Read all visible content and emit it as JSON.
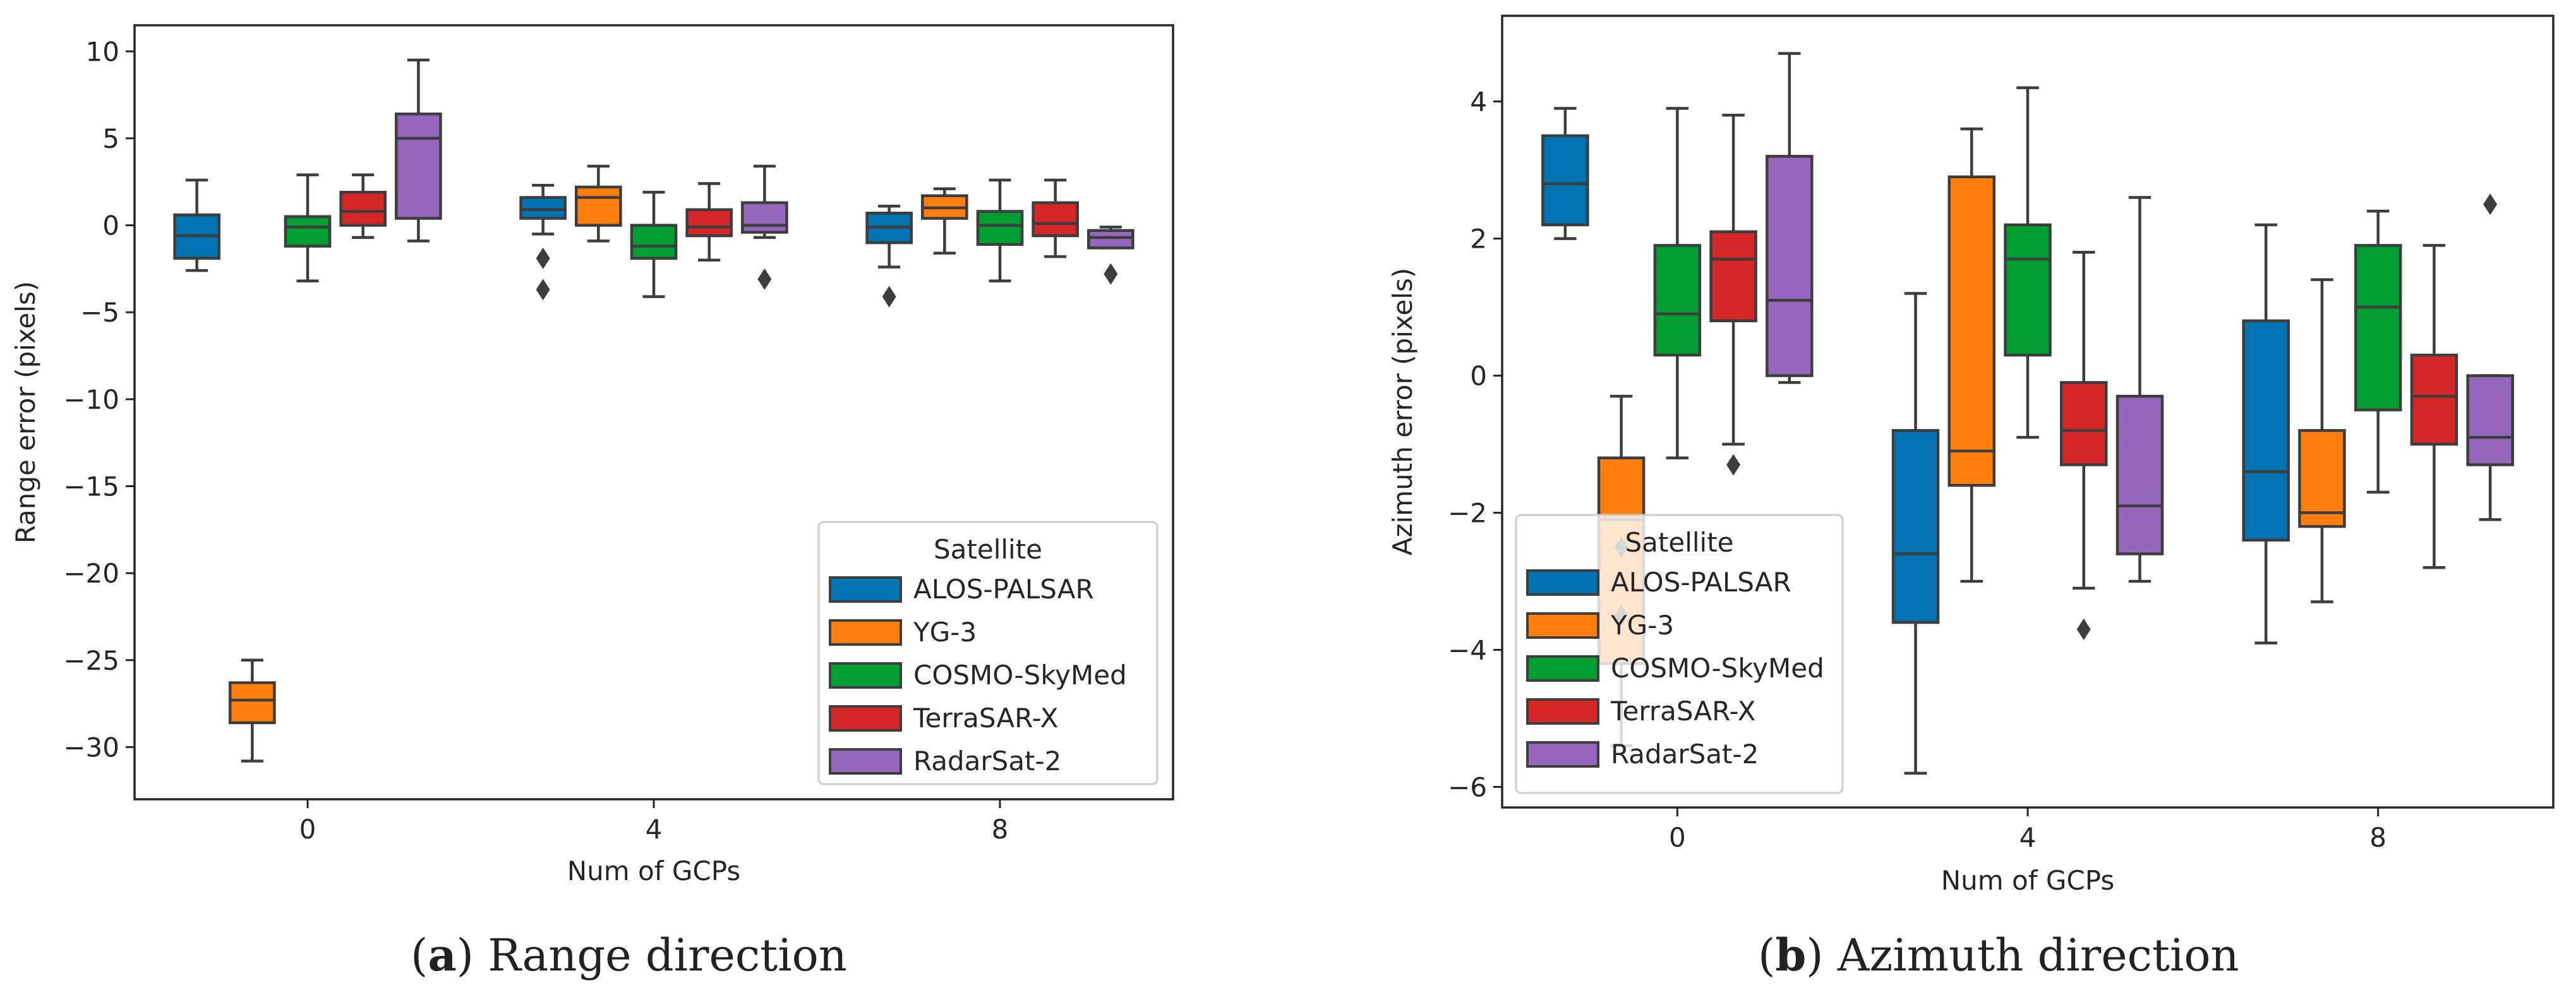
{
  "figure": {
    "colors": {
      "ALOS-PALSAR": "#0173b2",
      "YG-3": "#ff7f0e",
      "COSMO-SkyMed": "#029e31",
      "TerraSAR-X": "#d62728",
      "RadarSat-2": "#9467bd"
    },
    "captions": [
      {
        "letter": "a",
        "open": "(",
        "close": ")",
        "text": " Range direction"
      },
      {
        "letter": "b",
        "open": "(",
        "close": ")",
        "text": " Azimuth direction"
      }
    ]
  },
  "chart_data": [
    {
      "type": "boxplot",
      "id": "range",
      "xlabel": "Num of GCPs",
      "ylabel": "Range error (pixels)",
      "categories": [
        "0",
        "4",
        "8"
      ],
      "ylim": [
        -33,
        11.5
      ],
      "yticks": [
        10,
        5,
        0,
        -5,
        -10,
        -15,
        -20,
        -25,
        -30
      ],
      "ytick_labels": [
        "10",
        "5",
        "0",
        "−5",
        "−10",
        "−15",
        "−20",
        "−25",
        "−30"
      ],
      "legend": {
        "title": "Satellite",
        "position": "lower-right"
      },
      "series": [
        {
          "name": "ALOS-PALSAR",
          "boxes": [
            {
              "whislo": -2.6,
              "q1": -1.9,
              "med": -0.6,
              "q3": 0.6,
              "whishi": 2.6,
              "fliers": []
            },
            {
              "whislo": -0.5,
              "q1": 0.4,
              "med": 0.9,
              "q3": 1.6,
              "whishi": 2.3,
              "fliers": [
                -1.9,
                -3.7
              ]
            },
            {
              "whislo": -2.4,
              "q1": -1.0,
              "med": -0.1,
              "q3": 0.7,
              "whishi": 1.1,
              "fliers": [
                -4.1
              ]
            }
          ]
        },
        {
          "name": "YG-3",
          "boxes": [
            {
              "whislo": -30.8,
              "q1": -28.6,
              "med": -27.3,
              "q3": -26.3,
              "whishi": -25.0,
              "fliers": []
            },
            {
              "whislo": -0.9,
              "q1": 0.0,
              "med": 1.6,
              "q3": 2.2,
              "whishi": 3.4,
              "fliers": []
            },
            {
              "whislo": -1.6,
              "q1": 0.4,
              "med": 1.0,
              "q3": 1.7,
              "whishi": 2.1,
              "fliers": []
            }
          ]
        },
        {
          "name": "COSMO-SkyMed",
          "boxes": [
            {
              "whislo": -3.2,
              "q1": -1.2,
              "med": -0.1,
              "q3": 0.5,
              "whishi": 2.9,
              "fliers": []
            },
            {
              "whislo": -4.1,
              "q1": -1.9,
              "med": -1.2,
              "q3": 0.0,
              "whishi": 1.9,
              "fliers": []
            },
            {
              "whislo": -3.2,
              "q1": -1.1,
              "med": 0.0,
              "q3": 0.8,
              "whishi": 2.6,
              "fliers": []
            }
          ]
        },
        {
          "name": "TerraSAR-X",
          "boxes": [
            {
              "whislo": -0.7,
              "q1": 0.0,
              "med": 0.8,
              "q3": 1.9,
              "whishi": 2.9,
              "fliers": []
            },
            {
              "whislo": -2.0,
              "q1": -0.6,
              "med": -0.1,
              "q3": 0.9,
              "whishi": 2.4,
              "fliers": []
            },
            {
              "whislo": -1.8,
              "q1": -0.6,
              "med": 0.1,
              "q3": 1.3,
              "whishi": 2.6,
              "fliers": []
            }
          ]
        },
        {
          "name": "RadarSat-2",
          "boxes": [
            {
              "whislo": -0.9,
              "q1": 0.4,
              "med": 5.0,
              "q3": 6.4,
              "whishi": 9.5,
              "fliers": []
            },
            {
              "whislo": -0.7,
              "q1": -0.4,
              "med": 0.0,
              "q3": 1.3,
              "whishi": 3.4,
              "fliers": [
                -3.1
              ]
            },
            {
              "whislo": -1.3,
              "q1": -1.3,
              "med": -0.7,
              "q3": -0.3,
              "whishi": -0.1,
              "fliers": [
                -2.8
              ]
            }
          ]
        }
      ]
    },
    {
      "type": "boxplot",
      "id": "azimuth",
      "xlabel": "Num of GCPs",
      "ylabel": "Azimuth error (pixels)",
      "categories": [
        "0",
        "4",
        "8"
      ],
      "ylim": [
        -6.3,
        5.25
      ],
      "yticks": [
        4,
        2,
        0,
        -2,
        -4,
        -6
      ],
      "ytick_labels": [
        "4",
        "2",
        "0",
        "−2",
        "−4",
        "−6"
      ],
      "legend": {
        "title": "Satellite",
        "position": "lower-left"
      },
      "series": [
        {
          "name": "ALOS-PALSAR",
          "boxes": [
            {
              "whislo": 2.0,
              "q1": 2.2,
              "med": 2.8,
              "q3": 3.5,
              "whishi": 3.9,
              "fliers": []
            },
            {
              "whislo": -5.8,
              "q1": -3.6,
              "med": -2.6,
              "q3": -0.8,
              "whishi": 1.2,
              "fliers": []
            },
            {
              "whislo": -3.9,
              "q1": -2.4,
              "med": -1.4,
              "q3": 0.8,
              "whishi": 2.2,
              "fliers": []
            }
          ]
        },
        {
          "name": "YG-3",
          "boxes": [
            {
              "whislo": -5.4,
              "q1": -4.2,
              "med": -2.1,
              "q3": -1.2,
              "whishi": -0.3,
              "fliers": [
                -2.5,
                -3.5
              ]
            },
            {
              "whislo": -3.0,
              "q1": -1.6,
              "med": -1.1,
              "q3": 2.9,
              "whishi": 3.6,
              "fliers": []
            },
            {
              "whislo": -3.3,
              "q1": -2.2,
              "med": -2.0,
              "q3": -0.8,
              "whishi": 1.4,
              "fliers": []
            }
          ]
        },
        {
          "name": "COSMO-SkyMed",
          "boxes": [
            {
              "whislo": -1.2,
              "q1": 0.3,
              "med": 0.9,
              "q3": 1.9,
              "whishi": 3.9,
              "fliers": []
            },
            {
              "whislo": -0.9,
              "q1": 0.3,
              "med": 1.7,
              "q3": 2.2,
              "whishi": 4.2,
              "fliers": []
            },
            {
              "whislo": -1.7,
              "q1": -0.5,
              "med": 1.0,
              "q3": 1.9,
              "whishi": 2.4,
              "fliers": []
            }
          ]
        },
        {
          "name": "TerraSAR-X",
          "boxes": [
            {
              "whislo": -1.0,
              "q1": 0.8,
              "med": 1.7,
              "q3": 2.1,
              "whishi": 3.8,
              "fliers": [
                -1.3
              ]
            },
            {
              "whislo": -3.1,
              "q1": -1.3,
              "med": -0.8,
              "q3": -0.1,
              "whishi": 1.8,
              "fliers": [
                -3.7
              ]
            },
            {
              "whislo": -2.8,
              "q1": -1.0,
              "med": -0.3,
              "q3": 0.3,
              "whishi": 1.9,
              "fliers": []
            }
          ]
        },
        {
          "name": "RadarSat-2",
          "boxes": [
            {
              "whislo": -0.1,
              "q1": 0.0,
              "med": 1.1,
              "q3": 3.2,
              "whishi": 4.7,
              "fliers": []
            },
            {
              "whislo": -3.0,
              "q1": -2.6,
              "med": -1.9,
              "q3": -0.3,
              "whishi": 2.6,
              "fliers": []
            },
            {
              "whislo": -2.1,
              "q1": -1.3,
              "med": -0.9,
              "q3": 0.0,
              "whishi": 0.0,
              "fliers": [
                2.5
              ]
            }
          ]
        }
      ]
    }
  ]
}
